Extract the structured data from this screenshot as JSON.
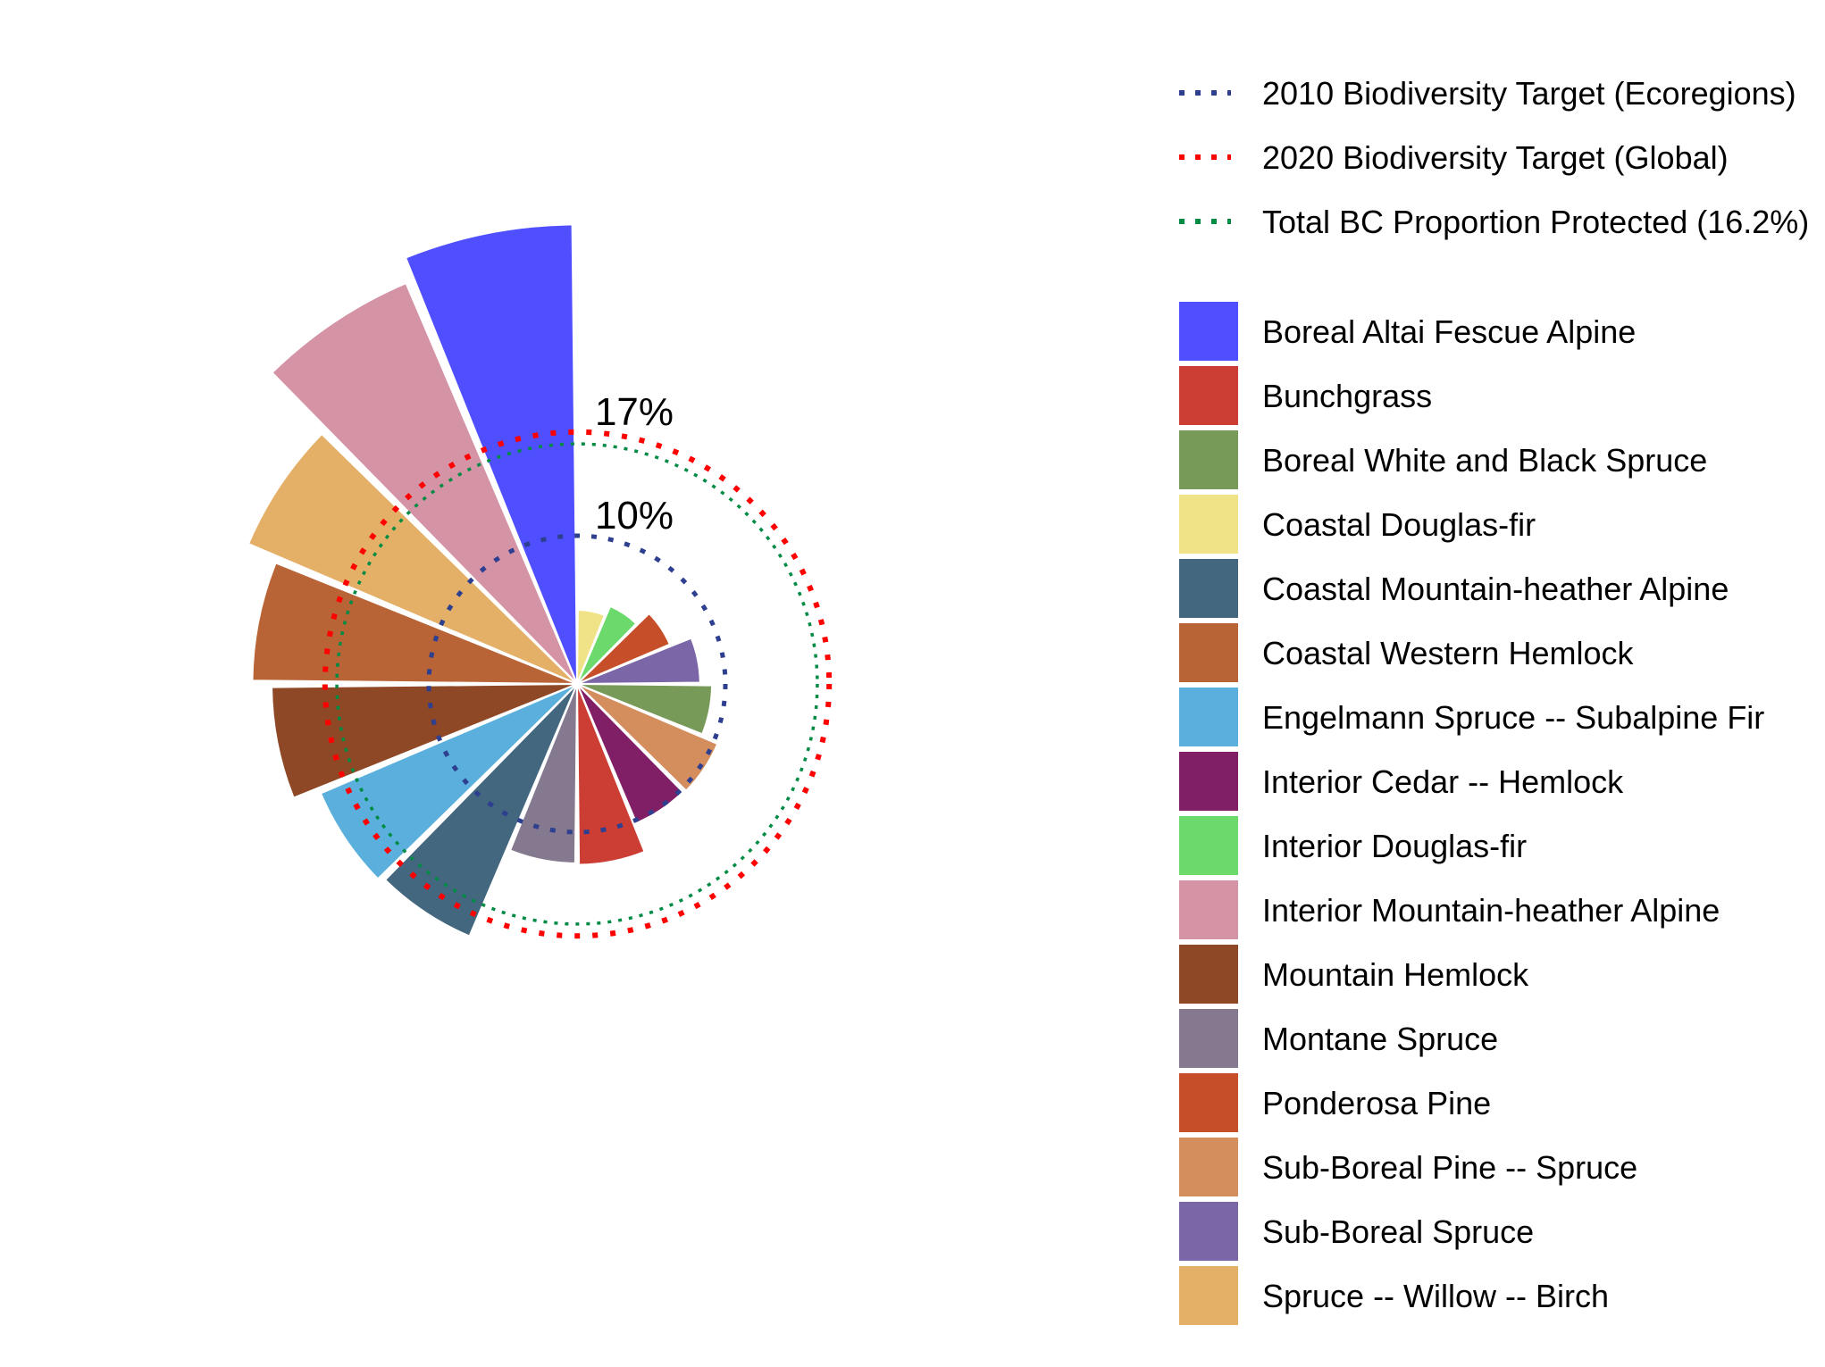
{
  "chart_data": {
    "type": "polar-bar",
    "title": "",
    "unit": "percent protected",
    "reference_rings": [
      {
        "label": "2010 Biodiversity Target (Ecoregions)",
        "value": 10,
        "ring_label": "10%",
        "color": "#2E3F8F",
        "style": "dotted"
      },
      {
        "label": "2020 Biodiversity Target (Global)",
        "value": 17,
        "ring_label": "17%",
        "color": "#FF0000",
        "style": "dotted"
      },
      {
        "label": "Total BC Proportion Protected (16.2%)",
        "value": 16.2,
        "ring_label": "",
        "color": "#008B45",
        "style": "dotted"
      }
    ],
    "bars": [
      {
        "name": "Coastal Douglas-fir",
        "value": 5,
        "color": "#F0E287"
      },
      {
        "name": "Interior Douglas-fir",
        "value": 5.7,
        "color": "#6BD96B"
      },
      {
        "name": "Ponderosa Pine",
        "value": 6.8,
        "color": "#C64F2A"
      },
      {
        "name": "Sub-Boreal Spruce",
        "value": 8.3,
        "color": "#7B66A8"
      },
      {
        "name": "Boreal White and Black Spruce",
        "value": 9.1,
        "color": "#779A58"
      },
      {
        "name": "Sub-Boreal Pine -- Spruce",
        "value": 10.3,
        "color": "#D48E5E"
      },
      {
        "name": "Interior Cedar -- Hemlock",
        "value": 10.2,
        "color": "#801F66"
      },
      {
        "name": "Bunchgrass",
        "value": 12.2,
        "color": "#CC3D33"
      },
      {
        "name": "Montane Spruce",
        "value": 12.1,
        "color": "#84798E"
      },
      {
        "name": "Coastal Mountain-heather Alpine",
        "value": 18.5,
        "color": "#43677F"
      },
      {
        "name": "Engelmann Spruce -- Subalpine Fir",
        "value": 18.8,
        "color": "#5AAFDC"
      },
      {
        "name": "Mountain Hemlock",
        "value": 20.6,
        "color": "#8E4825"
      },
      {
        "name": "Coastal Western Hemlock",
        "value": 21.9,
        "color": "#B86437"
      },
      {
        "name": "Spruce -- Willow -- Birch",
        "value": 24.1,
        "color": "#E4B068"
      },
      {
        "name": "Interior Mountain-heather Alpine",
        "value": 29.4,
        "color": "#D593A6"
      },
      {
        "name": "Boreal Altai Fescue Alpine",
        "value": 31,
        "color": "#4F4FFF"
      }
    ],
    "legend": {
      "position": "right",
      "lines": [
        {
          "label": "2010 Biodiversity Target (Ecoregions)",
          "color": "#2E3F8F"
        },
        {
          "label": "2020 Biodiversity Target (Global)",
          "color": "#FF0000"
        },
        {
          "label": "Total BC Proportion Protected (16.2%)",
          "color": "#008B45"
        }
      ],
      "fills": [
        {
          "label": "Boreal Altai Fescue Alpine",
          "color": "#4F4FFF"
        },
        {
          "label": "Bunchgrass",
          "color": "#CC3D33"
        },
        {
          "label": "Boreal White and Black Spruce",
          "color": "#779A58"
        },
        {
          "label": "Coastal Douglas-fir",
          "color": "#F0E287"
        },
        {
          "label": "Coastal Mountain-heather Alpine",
          "color": "#43677F"
        },
        {
          "label": "Coastal Western Hemlock",
          "color": "#B86437"
        },
        {
          "label": "Engelmann Spruce -- Subalpine Fir",
          "color": "#5AAFDC"
        },
        {
          "label": "Interior Cedar -- Hemlock",
          "color": "#801F66"
        },
        {
          "label": "Interior Douglas-fir",
          "color": "#6BD96B"
        },
        {
          "label": "Interior Mountain-heather Alpine",
          "color": "#D593A6"
        },
        {
          "label": "Mountain Hemlock",
          "color": "#8E4825"
        },
        {
          "label": "Montane Spruce",
          "color": "#84798E"
        },
        {
          "label": "Ponderosa Pine",
          "color": "#C64F2A"
        },
        {
          "label": "Sub-Boreal Pine -- Spruce",
          "color": "#D48E5E"
        },
        {
          "label": "Sub-Boreal Spruce",
          "color": "#7B66A8"
        },
        {
          "label": "Spruce -- Willow -- Birch",
          "color": "#E4B068"
        }
      ]
    }
  }
}
